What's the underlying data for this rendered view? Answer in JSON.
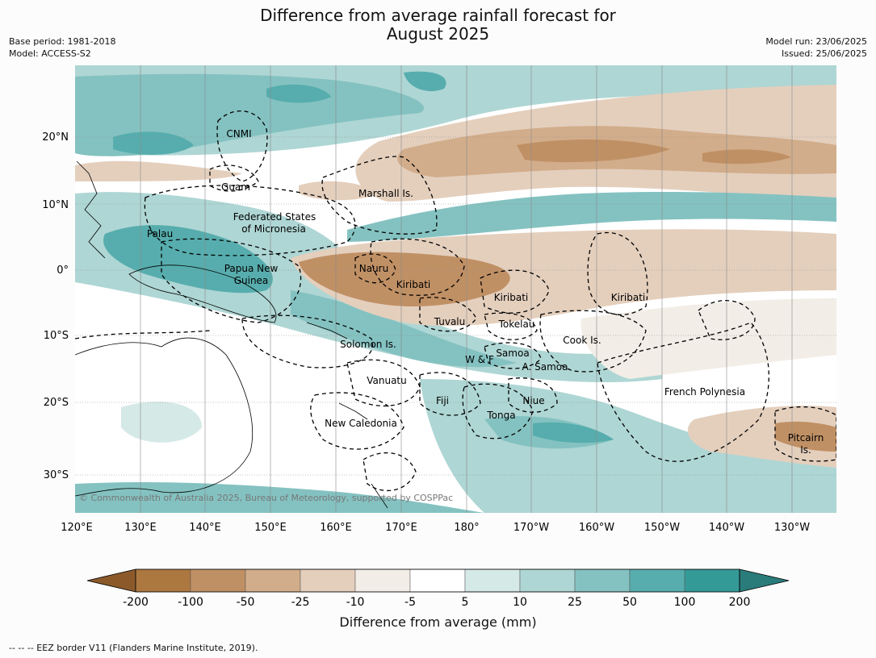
{
  "title": "Difference from average rainfall forecast for",
  "title_line2": "August 2025",
  "meta_left": [
    "Base period: 1981-2018",
    "Model: ACCESS-S2"
  ],
  "meta_right": [
    "Model run: 23/06/2025",
    "Issued: 25/06/2025"
  ],
  "copyright": "© Commonwealth of Australia 2025, Bureau of Meteorology, supported by COSPPac",
  "lat_labels": [
    "20°N",
    "10°N",
    "0°",
    "10°S",
    "20°S",
    "30°S"
  ],
  "lon_labels": [
    "120°E",
    "130°E",
    "140°E",
    "150°E",
    "160°E",
    "170°E",
    "180°",
    "170°W",
    "160°W",
    "150°W",
    "140°W",
    "130°W"
  ],
  "region_labels": [
    "CNMI",
    "Guam",
    "Marshall Is.",
    "Federated States",
    "of Micronesia",
    "Palau",
    "Papua New",
    "Guinea",
    "Nauru",
    "Kiribati",
    "Kiribati",
    "Kiribati",
    "Tuvalu",
    "Tokelau",
    "Cook Is.",
    "Solomon Is.",
    "Samoa",
    "W & F",
    "A. Samoa",
    "Vanuatu",
    "Fiji",
    "Niue",
    "Tonga",
    "French Polynesia",
    "New Caledonia",
    "Pitcairn",
    "Is."
  ],
  "colorbar": {
    "ticks": [
      "-200",
      "-100",
      "-50",
      "-25",
      "-10",
      "-5",
      "5",
      "10",
      "25",
      "50",
      "100",
      "200"
    ],
    "colors": [
      "#8c5a2a",
      "#ad7840",
      "#c09065",
      "#d2ad8b",
      "#e4cfbd",
      "#f2ede6",
      "#ffffff",
      "#d5e9e7",
      "#aed6d4",
      "#84c2c1",
      "#57adad",
      "#349a98",
      "#2a7c7a"
    ],
    "title": "Difference from average (mm)"
  },
  "footnote": "--  --  -- EEZ border V11 (Flanders Marine Institute, 2019)."
}
